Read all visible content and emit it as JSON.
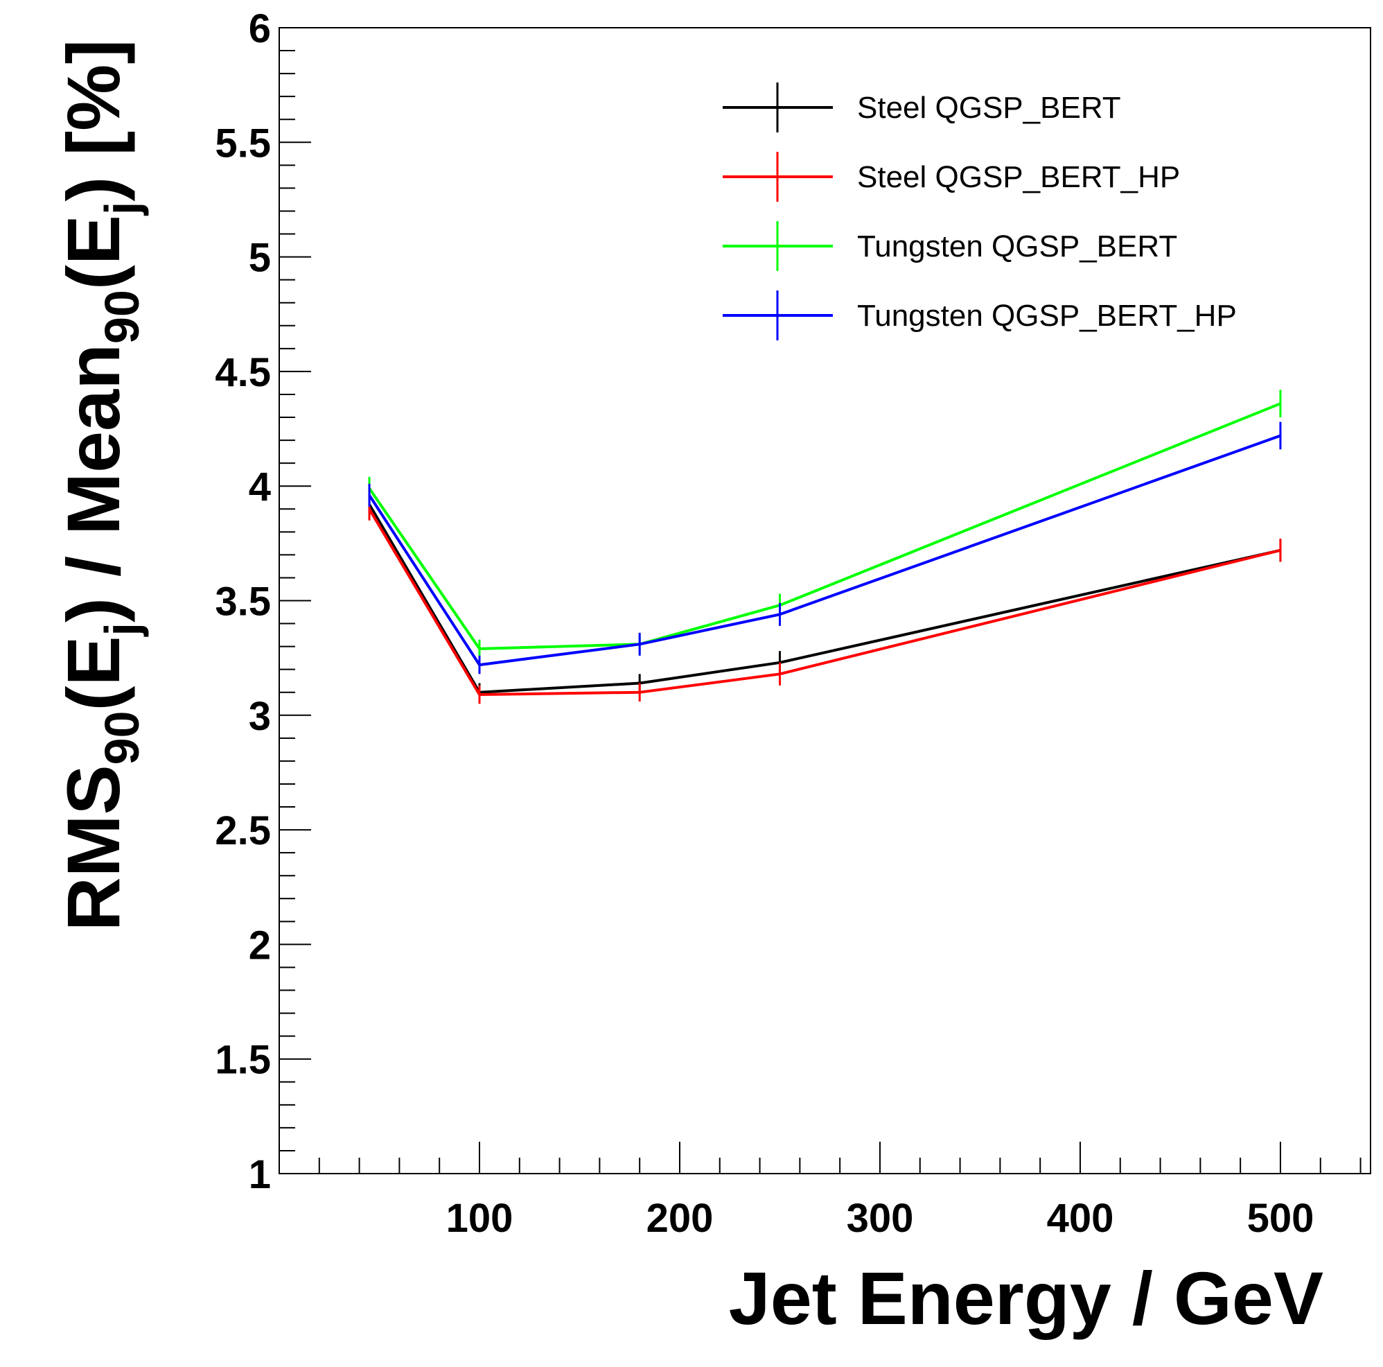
{
  "chart_data": {
    "type": "line",
    "x": [
      45,
      100,
      180,
      250,
      500
    ],
    "xlabel": "Jet Energy / GeV",
    "ylabel": {
      "parts": [
        "RMS",
        "90",
        "(E",
        "j",
        ") / Mean",
        "90",
        "(E",
        "j",
        ") [%]"
      ]
    },
    "xlim": [
      0,
      545
    ],
    "ylim": [
      1,
      6
    ],
    "x_ticks": [
      "100",
      "200",
      "300",
      "400",
      "500"
    ],
    "y_ticks": [
      "1",
      "1.5",
      "2",
      "2.5",
      "3",
      "3.5",
      "4",
      "4.5",
      "5",
      "5.5",
      "6"
    ],
    "legend_position": "top-right",
    "grid": false,
    "series": [
      {
        "name": "Steel QGSP_BERT",
        "color": "#000000",
        "values": [
          3.92,
          3.1,
          3.14,
          3.23,
          3.72
        ],
        "errors": [
          0.05,
          0.04,
          0.04,
          0.05,
          0.05
        ]
      },
      {
        "name": "Steel QGSP_BERT_HP",
        "color": "#ff0000",
        "values": [
          3.9,
          3.09,
          3.1,
          3.18,
          3.72
        ],
        "errors": [
          0.05,
          0.04,
          0.04,
          0.05,
          0.05
        ]
      },
      {
        "name": "Tungsten QGSP_BERT",
        "color": "#00ff00",
        "values": [
          3.99,
          3.29,
          3.31,
          3.48,
          4.36
        ],
        "errors": [
          0.05,
          0.04,
          0.04,
          0.05,
          0.06
        ]
      },
      {
        "name": "Tungsten QGSP_BERT_HP",
        "color": "#0000ff",
        "values": [
          3.96,
          3.22,
          3.31,
          3.44,
          4.22
        ],
        "errors": [
          0.05,
          0.04,
          0.05,
          0.05,
          0.06
        ]
      }
    ]
  }
}
